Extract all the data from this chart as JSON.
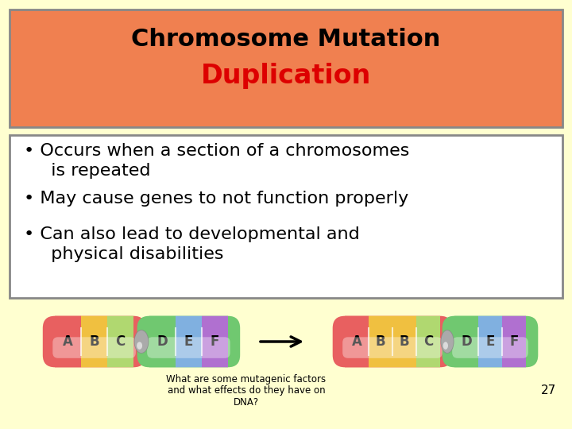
{
  "bg_color": "#ffffd0",
  "title_line1": "Chromosome Mutation",
  "title_line2": "Duplication",
  "title_bg": "#f08050",
  "title_color1": "#000000",
  "title_color2": "#dd0000",
  "bullet_points": [
    "Occurs when a section of a chromosomes is repeated",
    "May cause genes to not function properly",
    "Can also lead to developmental and physical disabilities"
  ],
  "bullet_box_bg": "#ffffff",
  "footer_text": "What are some mutagenic factors\nand what effects do they have on\nDNA?",
  "footer_num": "27",
  "before_labels": [
    "A",
    "B",
    "C",
    "gray",
    "D",
    "E",
    "F"
  ],
  "before_colors": [
    "#e86060",
    "#f0c040",
    "#b0d870",
    "#b0b0b0",
    "#70c870",
    "#80b0e0",
    "#b070d0"
  ],
  "after_labels": [
    "A",
    "B",
    "B",
    "C",
    "gray",
    "D",
    "E",
    "F"
  ],
  "after_colors": [
    "#e86060",
    "#f0c040",
    "#f0c040",
    "#b0d870",
    "#b0b0b0",
    "#70c870",
    "#80b0e0",
    "#b070d0"
  ]
}
